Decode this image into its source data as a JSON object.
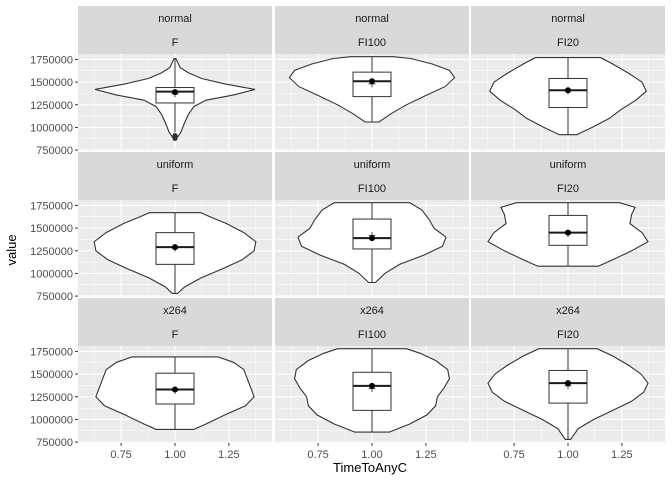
{
  "chart_data": {
    "type": "violin",
    "title": "",
    "xlabel": "TimeToAnyC",
    "ylabel": "value",
    "xlim": [
      0.55,
      1.45
    ],
    "ylim": [
      740000,
      1810000
    ],
    "x_ticks": [
      0.75,
      1.0,
      1.25
    ],
    "x_tick_labels": [
      "0.75",
      "1.00",
      "1.25"
    ],
    "y_ticks": [
      750000,
      1000000,
      1250000,
      1500000,
      1750000
    ],
    "y_tick_labels": [
      "750000",
      "1000000",
      "1250000",
      "1500000",
      "1750000"
    ],
    "grid": true,
    "facet_rows": [
      "normal",
      "uniform",
      "x264"
    ],
    "facet_cols": [
      "F",
      "FI100",
      "FI20"
    ],
    "panels": [
      {
        "row": "normal",
        "col": "F",
        "x": 1.0,
        "median": 1395000,
        "q1": 1270000,
        "q3": 1440000,
        "whisker_low": 950000,
        "whisker_high": 1760000,
        "outliers": [
          910000,
          880000
        ],
        "mean": 1390000,
        "marker": 1370000,
        "density": [
          [
            880000,
            0.02
          ],
          [
            950000,
            0.07
          ],
          [
            1050000,
            0.11
          ],
          [
            1150000,
            0.16
          ],
          [
            1230000,
            0.22
          ],
          [
            1300000,
            0.36
          ],
          [
            1360000,
            0.69
          ],
          [
            1420000,
            0.93
          ],
          [
            1480000,
            0.58
          ],
          [
            1540000,
            0.31
          ],
          [
            1600000,
            0.16
          ],
          [
            1660000,
            0.06
          ],
          [
            1720000,
            0.03
          ],
          [
            1760000,
            0.01
          ]
        ]
      },
      {
        "row": "normal",
        "col": "FI100",
        "x": 1.0,
        "median": 1510000,
        "q1": 1340000,
        "q3": 1610000,
        "whisker_low": 1060000,
        "whisker_high": 1780000,
        "outliers": [],
        "mean": 1510000,
        "marker": 1480000,
        "density": [
          [
            1060000,
            0.08
          ],
          [
            1150000,
            0.22
          ],
          [
            1250000,
            0.4
          ],
          [
            1350000,
            0.62
          ],
          [
            1450000,
            0.85
          ],
          [
            1550000,
            0.96
          ],
          [
            1630000,
            0.9
          ],
          [
            1700000,
            0.7
          ],
          [
            1760000,
            0.45
          ],
          [
            1780000,
            0.25
          ]
        ]
      },
      {
        "row": "normal",
        "col": "FI20",
        "x": 1.0,
        "median": 1410000,
        "q1": 1220000,
        "q3": 1540000,
        "whisker_low": 920000,
        "whisker_high": 1770000,
        "outliers": [],
        "mean": 1410000,
        "marker": 1400000,
        "density": [
          [
            920000,
            0.1
          ],
          [
            1000000,
            0.28
          ],
          [
            1100000,
            0.48
          ],
          [
            1200000,
            0.62
          ],
          [
            1300000,
            0.79
          ],
          [
            1400000,
            0.91
          ],
          [
            1500000,
            0.86
          ],
          [
            1600000,
            0.7
          ],
          [
            1700000,
            0.52
          ],
          [
            1770000,
            0.38
          ]
        ]
      },
      {
        "row": "uniform",
        "col": "F",
        "x": 1.0,
        "median": 1290000,
        "q1": 1100000,
        "q3": 1450000,
        "whisker_low": 780000,
        "whisker_high": 1670000,
        "outliers": [],
        "mean": 1290000,
        "marker": 1280000,
        "density": [
          [
            780000,
            0.03
          ],
          [
            850000,
            0.11
          ],
          [
            950000,
            0.3
          ],
          [
            1050000,
            0.55
          ],
          [
            1150000,
            0.78
          ],
          [
            1250000,
            0.92
          ],
          [
            1350000,
            0.94
          ],
          [
            1450000,
            0.8
          ],
          [
            1550000,
            0.6
          ],
          [
            1620000,
            0.42
          ],
          [
            1670000,
            0.3
          ]
        ]
      },
      {
        "row": "uniform",
        "col": "FI100",
        "x": 1.0,
        "median": 1390000,
        "q1": 1270000,
        "q3": 1600000,
        "whisker_low": 900000,
        "whisker_high": 1780000,
        "outliers": [],
        "mean": 1390000,
        "marker": 1420000,
        "density": [
          [
            900000,
            0.04
          ],
          [
            1000000,
            0.15
          ],
          [
            1100000,
            0.32
          ],
          [
            1200000,
            0.6
          ],
          [
            1300000,
            0.82
          ],
          [
            1400000,
            0.86
          ],
          [
            1500000,
            0.72
          ],
          [
            1600000,
            0.66
          ],
          [
            1700000,
            0.58
          ],
          [
            1780000,
            0.44
          ]
        ]
      },
      {
        "row": "uniform",
        "col": "FI20",
        "x": 1.0,
        "median": 1450000,
        "q1": 1310000,
        "q3": 1640000,
        "whisker_low": 1080000,
        "whisker_high": 1780000,
        "outliers": [],
        "mean": 1450000,
        "marker": 1440000,
        "density": [
          [
            1080000,
            0.35
          ],
          [
            1150000,
            0.52
          ],
          [
            1250000,
            0.74
          ],
          [
            1350000,
            0.93
          ],
          [
            1450000,
            0.86
          ],
          [
            1550000,
            0.72
          ],
          [
            1650000,
            0.74
          ],
          [
            1730000,
            0.78
          ],
          [
            1780000,
            0.6
          ]
        ]
      },
      {
        "row": "x264",
        "col": "F",
        "x": 1.0,
        "median": 1330000,
        "q1": 1170000,
        "q3": 1510000,
        "whisker_low": 890000,
        "whisker_high": 1690000,
        "outliers": [],
        "mean": 1330000,
        "marker": 1320000,
        "density": [
          [
            890000,
            0.22
          ],
          [
            950000,
            0.36
          ],
          [
            1050000,
            0.58
          ],
          [
            1150000,
            0.82
          ],
          [
            1250000,
            0.92
          ],
          [
            1350000,
            0.88
          ],
          [
            1450000,
            0.84
          ],
          [
            1550000,
            0.8
          ],
          [
            1630000,
            0.68
          ],
          [
            1690000,
            0.5
          ]
        ]
      },
      {
        "row": "x264",
        "col": "FI100",
        "x": 1.0,
        "median": 1370000,
        "q1": 1100000,
        "q3": 1520000,
        "whisker_low": 860000,
        "whisker_high": 1780000,
        "outliers": [],
        "mean": 1370000,
        "marker": 1340000,
        "density": [
          [
            860000,
            0.2
          ],
          [
            950000,
            0.44
          ],
          [
            1050000,
            0.64
          ],
          [
            1150000,
            0.74
          ],
          [
            1250000,
            0.76
          ],
          [
            1350000,
            0.84
          ],
          [
            1450000,
            0.9
          ],
          [
            1550000,
            0.88
          ],
          [
            1650000,
            0.74
          ],
          [
            1730000,
            0.56
          ],
          [
            1780000,
            0.4
          ]
        ]
      },
      {
        "row": "x264",
        "col": "FI20",
        "x": 1.0,
        "median": 1400000,
        "q1": 1180000,
        "q3": 1540000,
        "whisker_low": 780000,
        "whisker_high": 1780000,
        "outliers": [],
        "mean": 1400000,
        "marker": 1370000,
        "density": [
          [
            780000,
            0.03
          ],
          [
            900000,
            0.12
          ],
          [
            1000000,
            0.3
          ],
          [
            1100000,
            0.52
          ],
          [
            1200000,
            0.74
          ],
          [
            1300000,
            0.88
          ],
          [
            1400000,
            0.93
          ],
          [
            1500000,
            0.85
          ],
          [
            1600000,
            0.7
          ],
          [
            1700000,
            0.52
          ],
          [
            1780000,
            0.34
          ]
        ]
      }
    ]
  }
}
